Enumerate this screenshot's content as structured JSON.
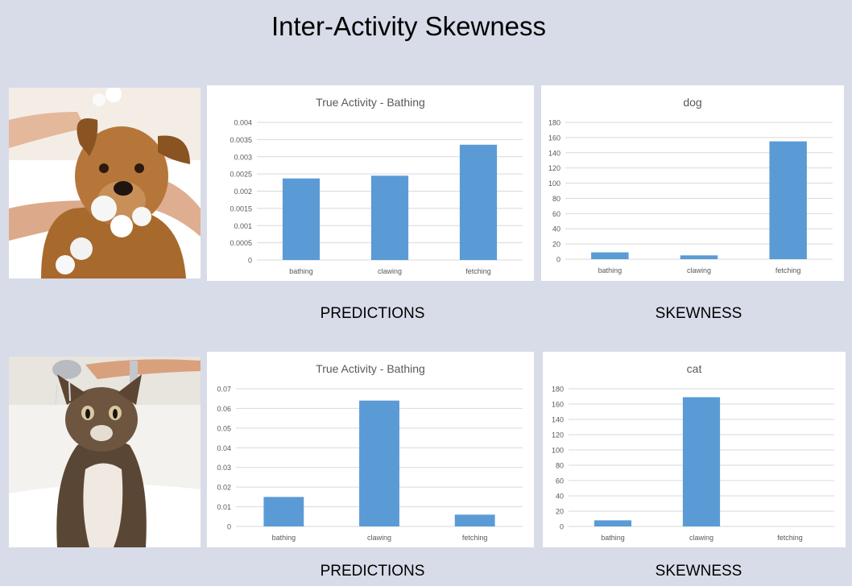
{
  "page": {
    "title": "Inter-Activity Skewness"
  },
  "rows": [
    {
      "predictions_label": "PREDICTIONS",
      "skewness_label": "SKEWNESS"
    },
    {
      "predictions_label": "PREDICTIONS",
      "skewness_label": "SKEWNESS"
    }
  ],
  "colors": {
    "bar": "#5b9bd5",
    "grid": "#d9d9d9",
    "text": "#595959"
  },
  "chart_data": [
    {
      "type": "bar",
      "title": "True Activity - Bathing",
      "categories": [
        "bathing",
        "clawing",
        "fetching"
      ],
      "values": [
        0.00237,
        0.00245,
        0.00335
      ],
      "ylim": [
        0,
        0.004
      ],
      "ticks": [
        0,
        0.0005,
        0.001,
        0.0015,
        0.002,
        0.0025,
        0.003,
        0.0035,
        0.004
      ],
      "tick_labels": [
        "0",
        "0.0005",
        "0.001",
        "0.0015",
        "0.002",
        "0.0025",
        "0.003",
        "0.0035",
        "0.004"
      ],
      "grid": true
    },
    {
      "type": "bar",
      "title": "dog",
      "categories": [
        "bathing",
        "clawing",
        "fetching"
      ],
      "values": [
        9,
        5,
        155
      ],
      "ylim": [
        0,
        180
      ],
      "ticks": [
        0,
        20,
        40,
        60,
        80,
        100,
        120,
        140,
        160,
        180
      ],
      "tick_labels": [
        "0",
        "20",
        "40",
        "60",
        "80",
        "100",
        "120",
        "140",
        "160",
        "180"
      ],
      "grid": true
    },
    {
      "type": "bar",
      "title": "True Activity - Bathing",
      "categories": [
        "bathing",
        "clawing",
        "fetching"
      ],
      "values": [
        0.015,
        0.064,
        0.006
      ],
      "ylim": [
        0,
        0.07
      ],
      "ticks": [
        0,
        0.01,
        0.02,
        0.03,
        0.04,
        0.05,
        0.06,
        0.07
      ],
      "tick_labels": [
        "0",
        "0.01",
        "0.02",
        "0.03",
        "0.04",
        "0.05",
        "0.06",
        "0.07"
      ],
      "grid": true
    },
    {
      "type": "bar",
      "title": "cat",
      "categories": [
        "bathing",
        "clawing",
        "fetching"
      ],
      "values": [
        8,
        169,
        0
      ],
      "ylim": [
        0,
        180
      ],
      "ticks": [
        0,
        20,
        40,
        60,
        80,
        100,
        120,
        140,
        160,
        180
      ],
      "tick_labels": [
        "0",
        "20",
        "40",
        "60",
        "80",
        "100",
        "120",
        "140",
        "160",
        "180"
      ],
      "grid": true
    }
  ]
}
